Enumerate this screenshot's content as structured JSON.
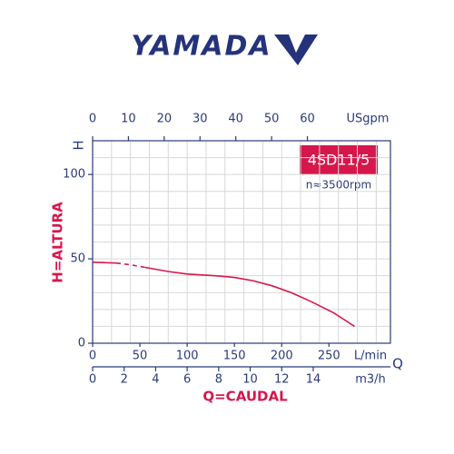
{
  "brand": "YAMADA",
  "chart_data": {
    "type": "line",
    "model": "4SD11/5",
    "speed": "n≈3500rpm",
    "y_label": "H=ALTURA",
    "y_axis_symbol": "H",
    "x_label": "Q=CAUDAL",
    "x_axis_symbol": "Q",
    "x_unit": "L/min",
    "xlim": [
      0,
      315
    ],
    "xticks": [
      0,
      50,
      100,
      150,
      200,
      250
    ],
    "x_top_unit": "USgpm",
    "x_top_lim": [
      0,
      83.2
    ],
    "x_top_ticks": [
      0,
      10,
      20,
      30,
      40,
      50,
      60
    ],
    "x_bottom_unit": "m3/h",
    "x_bottom_lim": [
      0,
      18.9
    ],
    "x_bottom_ticks": [
      0,
      2,
      4,
      6,
      8,
      10,
      12,
      14
    ],
    "ylim": [
      0,
      120
    ],
    "yticks": [
      0,
      50,
      100
    ],
    "grid": true,
    "xgrid": [
      20,
      40,
      60,
      80,
      100,
      120,
      140,
      160,
      180,
      200,
      220,
      240,
      260,
      280,
      300
    ],
    "ygrid": [
      10,
      20,
      30,
      40,
      50,
      60,
      70,
      80,
      90,
      100,
      110
    ],
    "series": [
      {
        "color": "#d6174b",
        "dashed": false,
        "x": [
          0,
          25
        ],
        "values": [
          48,
          47.5
        ]
      },
      {
        "color": "#d6174b",
        "dashed": true,
        "x": [
          25,
          40,
          55
        ],
        "values": [
          47.5,
          46.5,
          45
        ]
      },
      {
        "color": "#d6174b",
        "dashed": false,
        "x": [
          55,
          80,
          100,
          130,
          150,
          170,
          190,
          210,
          230,
          255,
          277
        ],
        "values": [
          45,
          42.5,
          41,
          40,
          39,
          37,
          34,
          30,
          25,
          18,
          10
        ]
      }
    ]
  }
}
